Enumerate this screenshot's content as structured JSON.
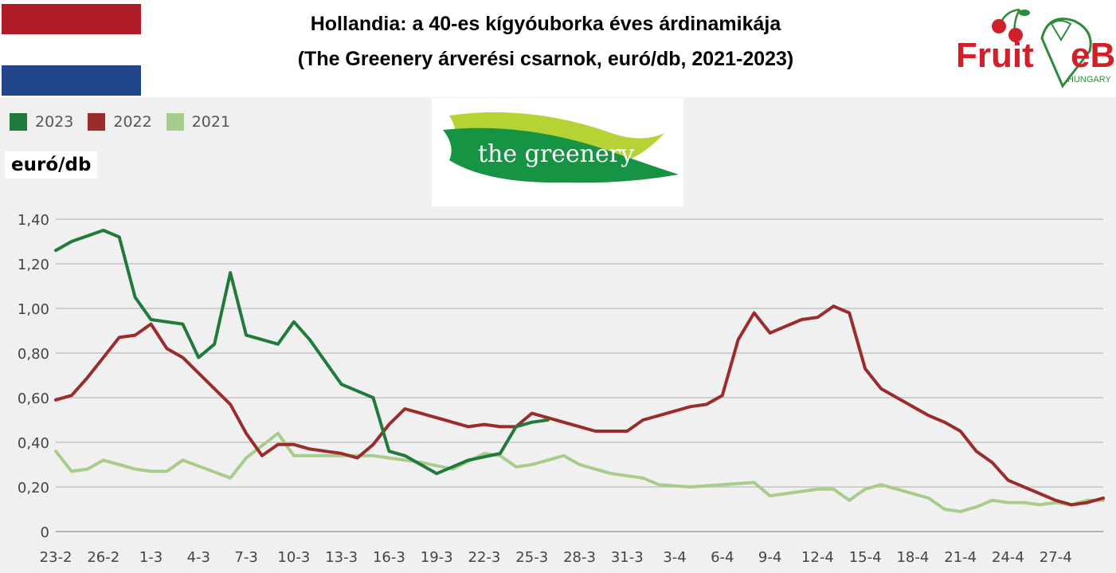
{
  "header": {
    "title_line1": "Hollandia: a 40-es kígyóuborka éves árdinamikája",
    "title_line2": "(The Greenery árverési csarnok, euró/db, 2021-2023)"
  },
  "flag": {
    "colors": [
      "#ae1c28",
      "#ffffff",
      "#21468b"
    ]
  },
  "logos": {
    "fruitveb": {
      "text_left": "Fruit",
      "text_right": "eB",
      "subtext": "HUNGARY",
      "icon": "cherry-icon"
    },
    "greenery": {
      "text": "the greenery",
      "icon": "leaf-icon"
    }
  },
  "chart_data": {
    "type": "line",
    "ylabel": "euró/db",
    "ylim": [
      0,
      1.4
    ],
    "yticks": [
      0,
      0.2,
      0.4,
      0.6,
      0.8,
      1.0,
      1.2,
      1.4
    ],
    "ytick_labels": [
      "0",
      "0,20",
      "0,40",
      "0,60",
      "0,80",
      "1,00",
      "1,20",
      "1,40"
    ],
    "grid": true,
    "legend": "top-left",
    "x_tick_labels": [
      "23-2",
      "26-2",
      "1-3",
      "4-3",
      "7-3",
      "10-3",
      "13-3",
      "16-3",
      "19-3",
      "22-3",
      "25-3",
      "28-3",
      "31-3",
      "3-4",
      "6-4",
      "9-4",
      "12-4",
      "15-4",
      "18-4",
      "21-4",
      "24-4",
      "27-4"
    ],
    "series": [
      {
        "name": "2023",
        "color": "#217a3c",
        "x": [
          0,
          1,
          3,
          4,
          5,
          6,
          8,
          9,
          10,
          11,
          12,
          14,
          15,
          16,
          17,
          18,
          20,
          21,
          22,
          23,
          24,
          25,
          26,
          28,
          29,
          30,
          31
        ],
        "values": [
          1.26,
          1.3,
          1.35,
          1.32,
          1.05,
          0.95,
          0.93,
          0.78,
          0.84,
          1.16,
          0.88,
          0.84,
          0.94,
          0.86,
          0.76,
          0.66,
          0.6,
          0.36,
          0.34,
          0.3,
          0.26,
          0.29,
          0.32,
          0.35,
          0.47,
          0.49,
          0.5
        ]
      },
      {
        "name": "2022",
        "color": "#9b2c2c",
        "x": [
          0,
          1,
          2,
          4,
          5,
          6,
          7,
          8,
          9,
          10,
          11,
          12,
          13,
          14,
          15,
          16,
          17,
          18,
          19,
          20,
          21,
          22,
          23,
          24,
          25,
          26,
          27,
          28,
          29,
          30,
          31,
          32,
          33,
          34,
          35,
          36,
          37,
          38,
          39,
          40,
          41,
          42,
          43,
          44,
          45,
          46,
          47,
          48,
          49,
          50,
          51,
          52,
          53,
          54,
          55,
          56,
          57,
          58,
          59,
          60,
          61,
          62,
          63,
          64,
          65,
          66
        ],
        "values": [
          0.59,
          0.61,
          0.69,
          0.87,
          0.88,
          0.93,
          0.82,
          0.78,
          0.71,
          0.64,
          0.57,
          0.44,
          0.34,
          0.39,
          0.39,
          0.37,
          0.36,
          0.35,
          0.33,
          0.39,
          0.48,
          0.55,
          0.53,
          0.51,
          0.49,
          0.47,
          0.48,
          0.47,
          0.47,
          0.53,
          0.51,
          0.49,
          0.47,
          0.45,
          0.45,
          0.45,
          0.5,
          0.52,
          0.54,
          0.56,
          0.57,
          0.61,
          0.86,
          0.98,
          0.89,
          0.92,
          0.95,
          0.96,
          1.01,
          0.98,
          0.73,
          0.64,
          0.6,
          0.56,
          0.52,
          0.49,
          0.45,
          0.36,
          0.31,
          0.23,
          0.2,
          0.17,
          0.14,
          0.12,
          0.13,
          0.15
        ]
      },
      {
        "name": "2021",
        "color": "#a8cc8c",
        "x": [
          0,
          1,
          2,
          3,
          5,
          6,
          7,
          8,
          11,
          12,
          14,
          15,
          16,
          17,
          19,
          20,
          21,
          23,
          25,
          27,
          28,
          29,
          30,
          31,
          32,
          33,
          35,
          37,
          38,
          40,
          44,
          45,
          46,
          47,
          48,
          49,
          50,
          51,
          52,
          53,
          54,
          55,
          56,
          57,
          58,
          59,
          60,
          61,
          62,
          63,
          64,
          65,
          66
        ],
        "values": [
          0.36,
          0.27,
          0.28,
          0.32,
          0.28,
          0.27,
          0.27,
          0.32,
          0.24,
          0.33,
          0.44,
          0.34,
          0.34,
          0.34,
          0.34,
          0.34,
          0.33,
          0.31,
          0.28,
          0.35,
          0.34,
          0.29,
          0.3,
          0.32,
          0.34,
          0.3,
          0.26,
          0.24,
          0.21,
          0.2,
          0.22,
          0.16,
          0.17,
          0.18,
          0.19,
          0.19,
          0.14,
          0.19,
          0.21,
          0.19,
          0.17,
          0.15,
          0.1,
          0.09,
          0.11,
          0.14,
          0.13,
          0.13,
          0.12,
          0.13,
          0.12,
          0.14,
          0.14
        ]
      }
    ]
  }
}
